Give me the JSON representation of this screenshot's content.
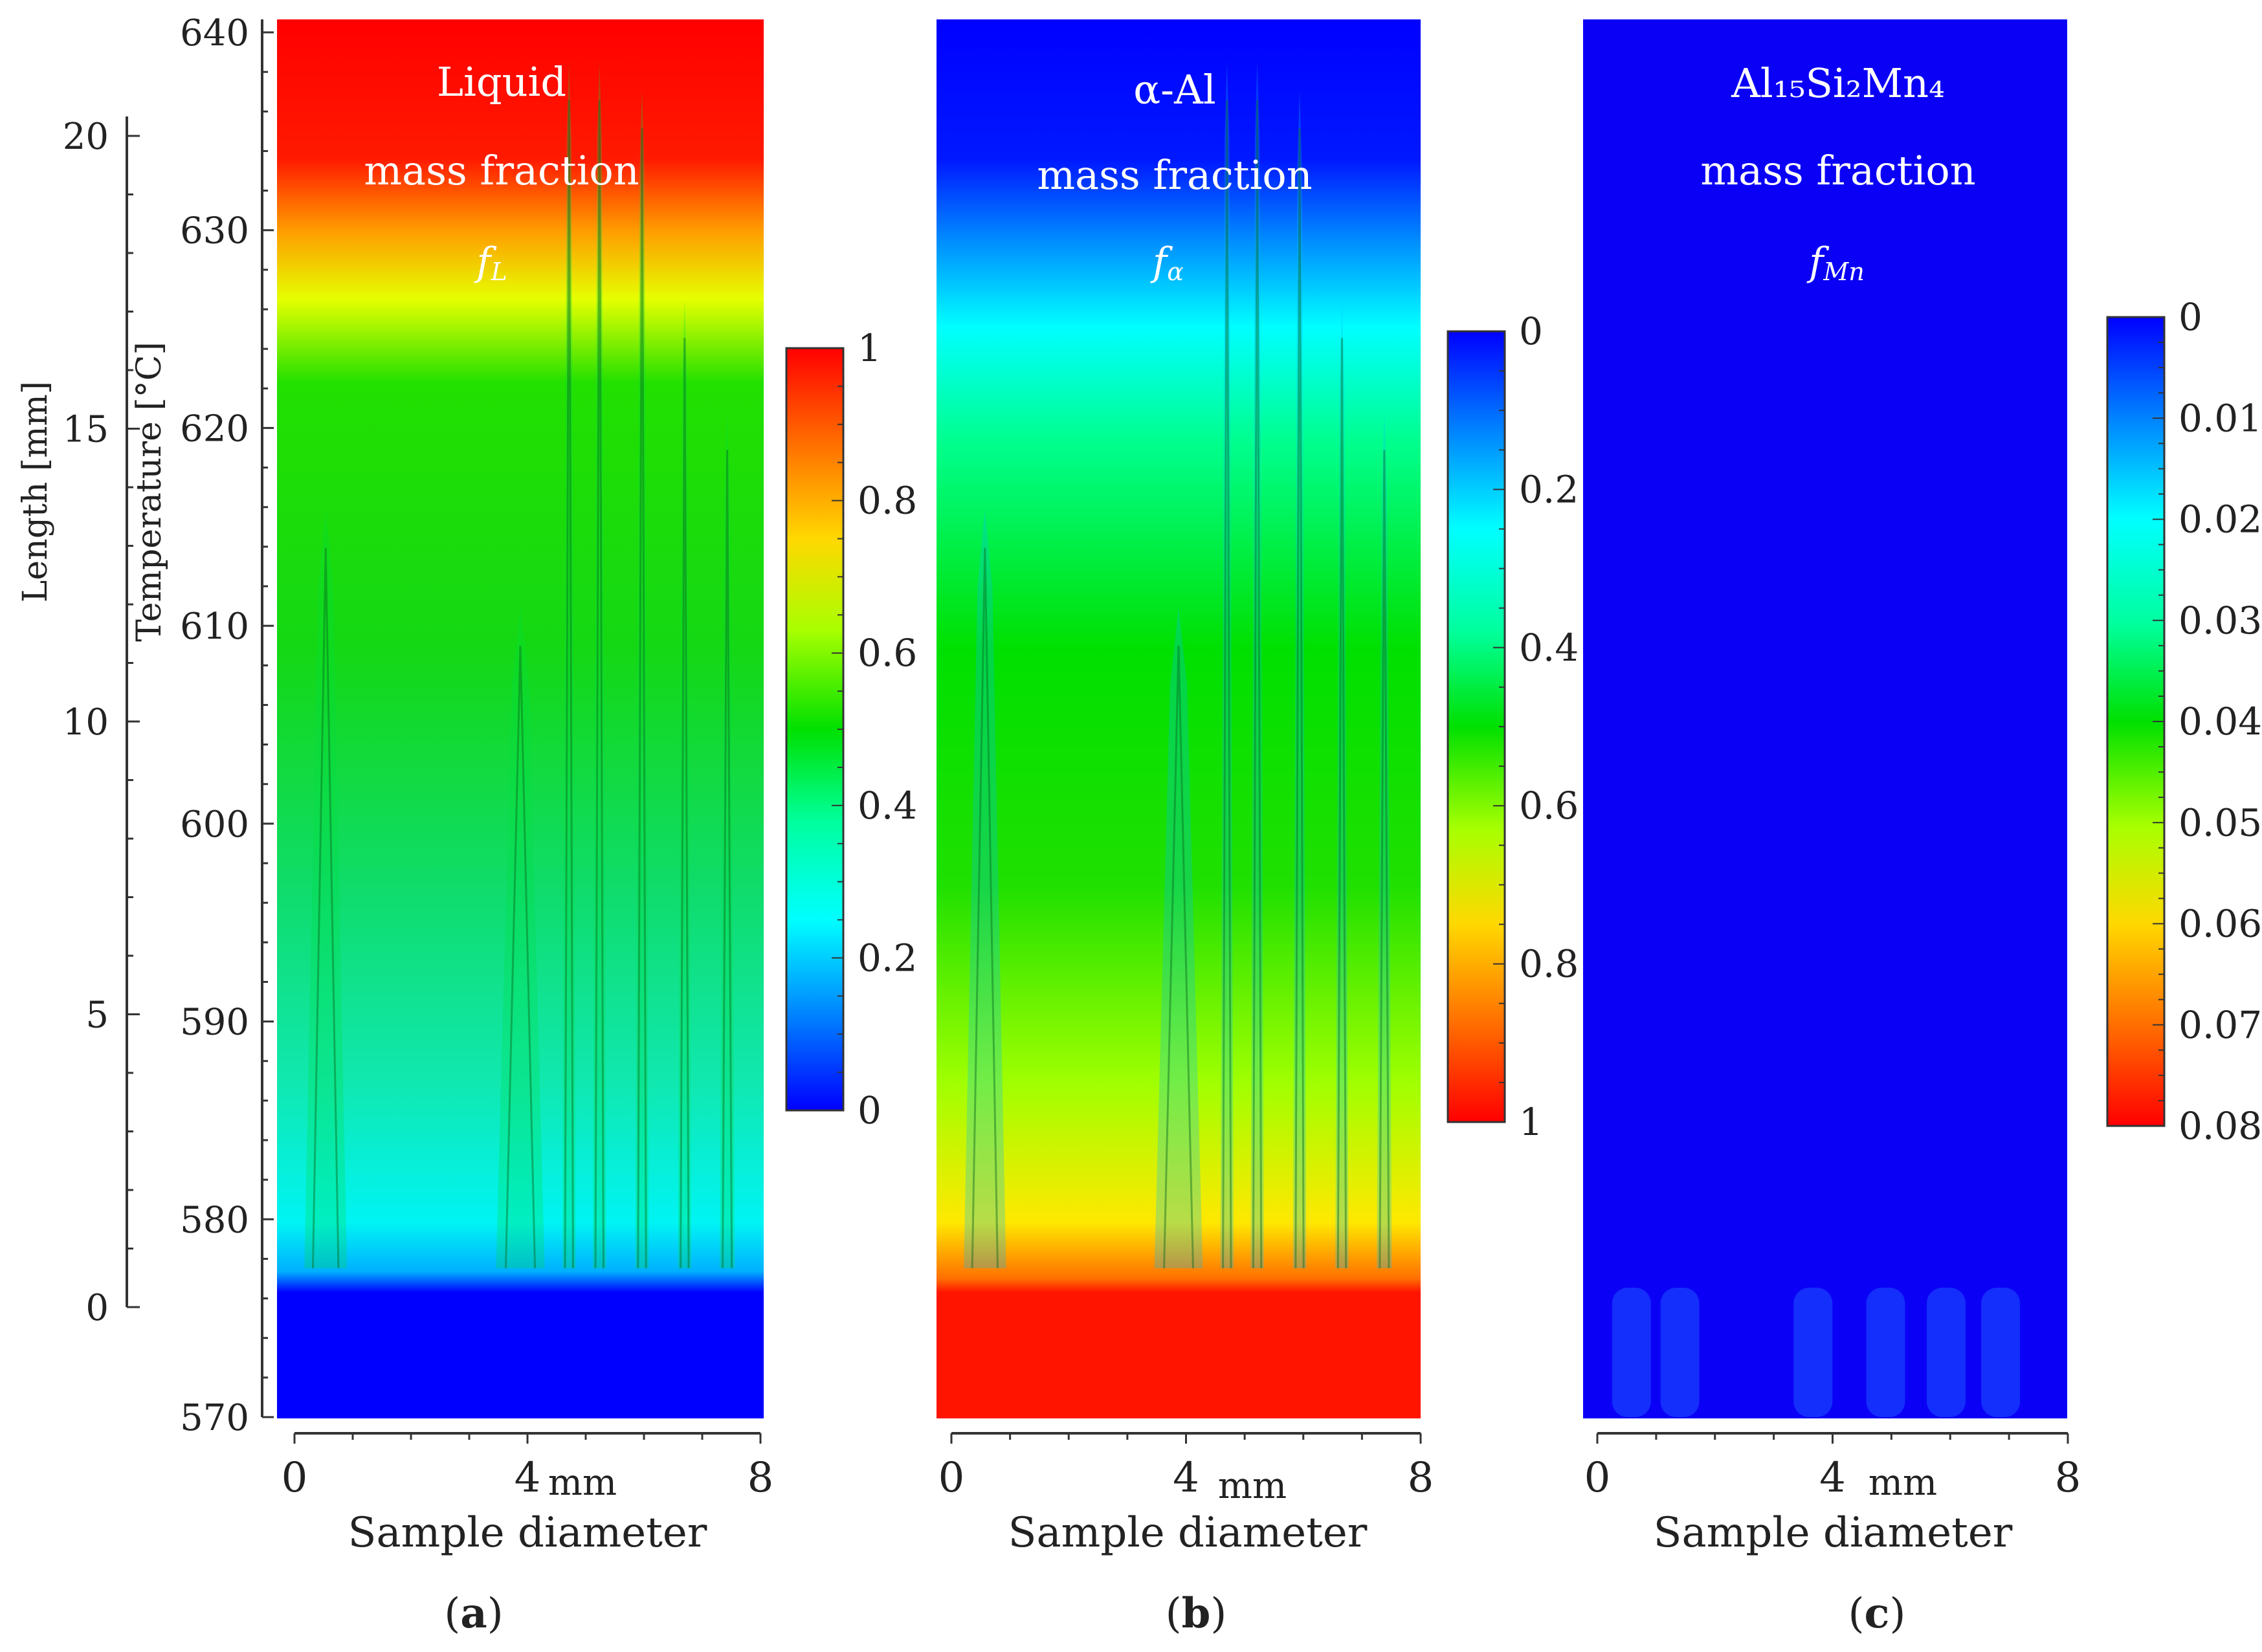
{
  "figure": {
    "length_axis": {
      "label": "Length [mm]",
      "ticks": [
        "20",
        "15",
        "10",
        "5",
        "0"
      ],
      "range": [
        0,
        20
      ]
    },
    "temperature_axis": {
      "label": "Temperature [°C]",
      "ticks": [
        "640",
        "630",
        "620",
        "610",
        "600",
        "590",
        "580",
        "570"
      ],
      "range": [
        570,
        641
      ]
    }
  },
  "chart_data": [
    {
      "type": "heatmap",
      "panel": "a",
      "letter_prefix": "(",
      "letter": "a",
      "letter_suffix": ")",
      "title_line1": "Liquid",
      "title_line2": "mass fraction",
      "symbol": "f",
      "symbol_sub": "L",
      "xlabel": "Sample diameter",
      "x_unit": "mm",
      "x_ticks": [
        "0",
        "4",
        "8"
      ],
      "x_range": [
        0,
        8
      ],
      "colorbar": {
        "ticks": [
          "1",
          "0.8",
          "0.6",
          "0.4",
          "0.2",
          "0"
        ],
        "range": [
          0,
          1
        ],
        "reversed": false
      },
      "scale": "fraction",
      "description_values": {
        "top_region": 1.0,
        "middle_region": 0.6,
        "near_bottom": 0.3,
        "bottom_band": 0.0
      }
    },
    {
      "type": "heatmap",
      "panel": "b",
      "letter_prefix": "(",
      "letter": "b",
      "letter_suffix": ")",
      "title_line1": "α-Al",
      "title_line2": "mass fraction",
      "symbol": "f",
      "symbol_sub": "α",
      "xlabel": "Sample diameter",
      "x_unit": "mm",
      "x_ticks": [
        "0",
        "4",
        "8"
      ],
      "x_range": [
        0,
        8
      ],
      "colorbar": {
        "ticks": [
          "0",
          "0.2",
          "0.4",
          "0.6",
          "0.8",
          "1"
        ],
        "range": [
          0,
          1
        ],
        "reversed": true
      },
      "scale": "fraction",
      "description_values": {
        "top_region": 0.0,
        "middle_region": 0.4,
        "near_bottom": 0.7,
        "bottom_band": 1.0
      }
    },
    {
      "type": "heatmap",
      "panel": "c",
      "letter_prefix": "(",
      "letter": "c",
      "letter_suffix": ")",
      "title_line1": "Al₁₅Si₂Mn₄",
      "title_line2": "mass fraction",
      "symbol": "f",
      "symbol_sub": "Mn",
      "xlabel": "Sample diameter",
      "x_unit": "mm",
      "x_ticks": [
        "0",
        "4",
        "8"
      ],
      "x_range": [
        0,
        8
      ],
      "colorbar": {
        "ticks": [
          "0",
          "0.01",
          "0.02",
          "0.03",
          "0.04",
          "0.05",
          "0.06",
          "0.07",
          "0.08"
        ],
        "range": [
          0,
          0.08
        ],
        "reversed": true
      },
      "scale": "mn",
      "description_values": {
        "top_region": 0.0,
        "middle_region": 0.0,
        "near_bottom": 0.0,
        "bottom_band": 0.004
      }
    }
  ]
}
